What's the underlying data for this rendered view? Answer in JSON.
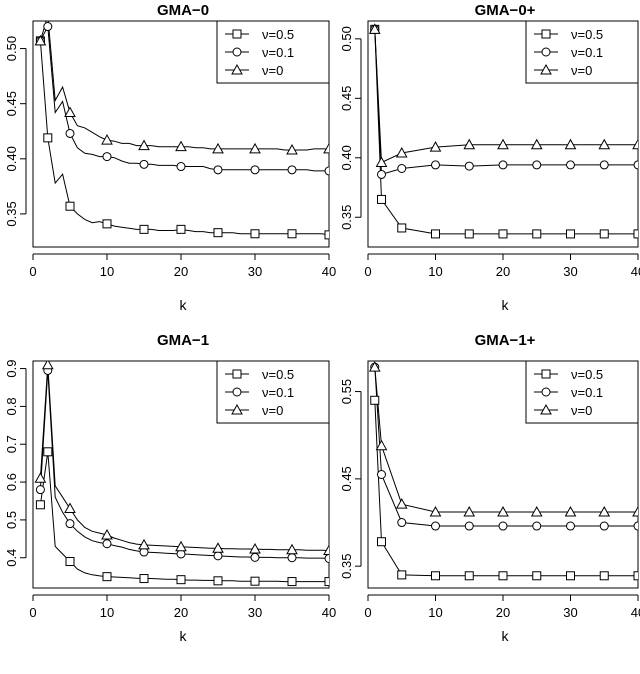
{
  "chart_data": [
    {
      "type": "line",
      "title": "GMA−0",
      "xlabel": "k",
      "ylabel": "",
      "xlim": [
        0,
        40
      ],
      "ylim": [
        0.32,
        0.525
      ],
      "x_ticks": [
        0,
        10,
        20,
        30,
        40
      ],
      "y_ticks": [
        0.35,
        0.4,
        0.45,
        0.5
      ],
      "y_tick_labels": [
        "0.35",
        "0.40",
        "0.45",
        "0.50"
      ],
      "legend_position": "top-right",
      "grid": false,
      "series": [
        {
          "name": "ν=0.5",
          "marker": "square",
          "x": [
            1,
            2,
            3,
            4,
            5,
            6,
            7,
            8,
            9,
            10,
            11,
            12,
            13,
            14,
            15,
            16,
            17,
            18,
            19,
            20,
            21,
            22,
            23,
            24,
            25,
            26,
            27,
            28,
            29,
            30,
            31,
            32,
            33,
            34,
            35,
            36,
            37,
            38,
            39,
            40
          ],
          "y": [
            0.507,
            0.419,
            0.378,
            0.386,
            0.357,
            0.35,
            0.345,
            0.342,
            0.343,
            0.341,
            0.339,
            0.338,
            0.337,
            0.336,
            0.336,
            0.336,
            0.335,
            0.335,
            0.335,
            0.336,
            0.335,
            0.334,
            0.334,
            0.333,
            0.333,
            0.333,
            0.333,
            0.332,
            0.332,
            0.332,
            0.332,
            0.332,
            0.332,
            0.332,
            0.332,
            0.332,
            0.332,
            0.332,
            0.332,
            0.331
          ],
          "marker_x": [
            1,
            2,
            5,
            10,
            15,
            20,
            25,
            30,
            35,
            40
          ]
        },
        {
          "name": "ν=0.1",
          "marker": "circle",
          "x": [
            1,
            2,
            3,
            4,
            5,
            6,
            7,
            8,
            9,
            10,
            11,
            12,
            13,
            14,
            15,
            16,
            17,
            18,
            19,
            20,
            21,
            22,
            23,
            24,
            25,
            26,
            27,
            28,
            29,
            30,
            31,
            32,
            33,
            34,
            35,
            36,
            37,
            38,
            39,
            40
          ],
          "y": [
            0.507,
            0.52,
            0.442,
            0.452,
            0.423,
            0.41,
            0.405,
            0.404,
            0.402,
            0.402,
            0.401,
            0.398,
            0.396,
            0.396,
            0.395,
            0.395,
            0.394,
            0.394,
            0.394,
            0.393,
            0.393,
            0.393,
            0.393,
            0.391,
            0.39,
            0.39,
            0.39,
            0.39,
            0.39,
            0.39,
            0.39,
            0.39,
            0.39,
            0.39,
            0.39,
            0.39,
            0.39,
            0.389,
            0.389,
            0.389
          ],
          "marker_x": [
            1,
            2,
            5,
            10,
            15,
            20,
            25,
            30,
            35,
            40
          ]
        },
        {
          "name": "ν=0",
          "marker": "triangle",
          "x": [
            1,
            2,
            3,
            4,
            5,
            6,
            7,
            8,
            9,
            10,
            11,
            12,
            13,
            14,
            15,
            16,
            17,
            18,
            19,
            20,
            21,
            22,
            23,
            24,
            25,
            26,
            27,
            28,
            29,
            30,
            31,
            32,
            33,
            34,
            35,
            36,
            37,
            38,
            39,
            40
          ],
          "y": [
            0.507,
            0.53,
            0.453,
            0.465,
            0.442,
            0.43,
            0.428,
            0.424,
            0.42,
            0.417,
            0.416,
            0.414,
            0.414,
            0.412,
            0.412,
            0.412,
            0.411,
            0.411,
            0.411,
            0.411,
            0.411,
            0.41,
            0.41,
            0.409,
            0.409,
            0.409,
            0.409,
            0.409,
            0.409,
            0.409,
            0.409,
            0.409,
            0.409,
            0.408,
            0.408,
            0.408,
            0.408,
            0.409,
            0.409,
            0.409
          ],
          "marker_x": [
            1,
            2,
            5,
            10,
            15,
            20,
            25,
            30,
            35,
            40
          ]
        }
      ]
    },
    {
      "type": "line",
      "title": "GMA−0+",
      "xlabel": "k",
      "ylabel": "",
      "xlim": [
        0,
        40
      ],
      "ylim": [
        0.325,
        0.515
      ],
      "x_ticks": [
        0,
        10,
        20,
        30,
        40
      ],
      "y_ticks": [
        0.35,
        0.4,
        0.45,
        0.5
      ],
      "y_tick_labels": [
        "0.35",
        "0.40",
        "0.45",
        "0.50"
      ],
      "legend_position": "top-right",
      "grid": false,
      "series": [
        {
          "name": "ν=0.5",
          "marker": "square",
          "x": [
            1,
            2,
            5,
            10,
            15,
            20,
            25,
            30,
            35,
            40
          ],
          "y": [
            0.508,
            0.365,
            0.341,
            0.336,
            0.336,
            0.336,
            0.336,
            0.336,
            0.336,
            0.336
          ],
          "marker_x": [
            1,
            2,
            5,
            10,
            15,
            20,
            25,
            30,
            35,
            40
          ]
        },
        {
          "name": "ν=0.1",
          "marker": "circle",
          "x": [
            1,
            2,
            5,
            10,
            15,
            20,
            25,
            30,
            35,
            40
          ],
          "y": [
            0.508,
            0.386,
            0.391,
            0.394,
            0.393,
            0.394,
            0.394,
            0.394,
            0.394,
            0.394
          ],
          "marker_x": [
            1,
            2,
            5,
            10,
            15,
            20,
            25,
            30,
            35,
            40
          ]
        },
        {
          "name": "ν=0",
          "marker": "triangle",
          "x": [
            1,
            2,
            5,
            10,
            15,
            20,
            25,
            30,
            35,
            40
          ],
          "y": [
            0.508,
            0.396,
            0.404,
            0.409,
            0.411,
            0.411,
            0.411,
            0.411,
            0.411,
            0.411
          ],
          "marker_x": [
            1,
            2,
            5,
            10,
            15,
            20,
            25,
            30,
            35,
            40
          ]
        }
      ]
    },
    {
      "type": "line",
      "title": "GMA−1",
      "xlabel": "k",
      "ylabel": "",
      "xlim": [
        0,
        40
      ],
      "ylim": [
        0.32,
        0.92
      ],
      "x_ticks": [
        0,
        10,
        20,
        30,
        40
      ],
      "y_ticks": [
        0.4,
        0.5,
        0.6,
        0.7,
        0.8,
        0.9
      ],
      "y_tick_labels": [
        "0.4",
        "0.5",
        "0.6",
        "0.7",
        "0.8",
        "0.9"
      ],
      "legend_position": "top-right",
      "grid": false,
      "series": [
        {
          "name": "ν=0.5",
          "marker": "square",
          "x": [
            1,
            2,
            3,
            4,
            5,
            6,
            7,
            8,
            9,
            10,
            11,
            12,
            13,
            14,
            15,
            16,
            17,
            18,
            19,
            20,
            21,
            22,
            23,
            24,
            25,
            26,
            27,
            28,
            29,
            30,
            31,
            32,
            33,
            34,
            35,
            36,
            37,
            38,
            39,
            40
          ],
          "y": [
            0.54,
            0.68,
            0.43,
            0.41,
            0.39,
            0.37,
            0.36,
            0.355,
            0.352,
            0.35,
            0.349,
            0.348,
            0.347,
            0.346,
            0.345,
            0.345,
            0.344,
            0.343,
            0.343,
            0.342,
            0.341,
            0.341,
            0.34,
            0.34,
            0.339,
            0.339,
            0.339,
            0.338,
            0.338,
            0.338,
            0.338,
            0.338,
            0.338,
            0.337,
            0.337,
            0.337,
            0.337,
            0.337,
            0.337,
            0.337
          ],
          "marker_x": [
            1,
            2,
            5,
            10,
            15,
            20,
            25,
            30,
            35,
            40
          ]
        },
        {
          "name": "ν=0.1",
          "marker": "circle",
          "x": [
            1,
            2,
            3,
            4,
            5,
            6,
            7,
            8,
            9,
            10,
            11,
            12,
            13,
            14,
            15,
            16,
            17,
            18,
            19,
            20,
            21,
            22,
            23,
            24,
            25,
            26,
            27,
            28,
            29,
            30,
            31,
            32,
            33,
            34,
            35,
            36,
            37,
            38,
            39,
            40
          ],
          "y": [
            0.58,
            0.895,
            0.56,
            0.52,
            0.49,
            0.47,
            0.455,
            0.445,
            0.44,
            0.437,
            0.432,
            0.428,
            0.422,
            0.418,
            0.415,
            0.414,
            0.413,
            0.412,
            0.411,
            0.41,
            0.409,
            0.408,
            0.407,
            0.406,
            0.405,
            0.404,
            0.403,
            0.402,
            0.402,
            0.401,
            0.401,
            0.401,
            0.4,
            0.4,
            0.4,
            0.4,
            0.399,
            0.399,
            0.399,
            0.398
          ],
          "marker_x": [
            1,
            2,
            5,
            10,
            15,
            20,
            25,
            30,
            35,
            40
          ]
        },
        {
          "name": "ν=0",
          "marker": "triangle",
          "x": [
            1,
            2,
            3,
            4,
            5,
            6,
            7,
            8,
            9,
            10,
            11,
            12,
            13,
            14,
            15,
            16,
            17,
            18,
            19,
            20,
            21,
            22,
            23,
            24,
            25,
            26,
            27,
            28,
            29,
            30,
            31,
            32,
            33,
            34,
            35,
            36,
            37,
            38,
            39,
            40
          ],
          "y": [
            0.61,
            0.91,
            0.59,
            0.56,
            0.53,
            0.5,
            0.48,
            0.47,
            0.465,
            0.46,
            0.452,
            0.446,
            0.44,
            0.436,
            0.434,
            0.433,
            0.432,
            0.431,
            0.43,
            0.429,
            0.428,
            0.427,
            0.426,
            0.425,
            0.425,
            0.424,
            0.424,
            0.423,
            0.423,
            0.423,
            0.422,
            0.422,
            0.421,
            0.421,
            0.421,
            0.421,
            0.42,
            0.42,
            0.42,
            0.419
          ],
          "marker_x": [
            1,
            2,
            5,
            10,
            15,
            20,
            25,
            30,
            35,
            40
          ]
        }
      ]
    },
    {
      "type": "line",
      "title": "GMA−1+",
      "xlabel": "k",
      "ylabel": "",
      "xlim": [
        0,
        40
      ],
      "ylim": [
        0.325,
        0.585
      ],
      "x_ticks": [
        0,
        10,
        20,
        30,
        40
      ],
      "y_ticks": [
        0.35,
        0.45,
        0.55
      ],
      "y_tick_labels": [
        "0.35",
        "0.45",
        "0.55"
      ],
      "legend_position": "top-right",
      "grid": false,
      "series": [
        {
          "name": "ν=0.5",
          "marker": "square",
          "x": [
            1,
            2,
            5,
            10,
            15,
            20,
            25,
            30,
            35,
            40
          ],
          "y": [
            0.54,
            0.378,
            0.34,
            0.339,
            0.339,
            0.339,
            0.339,
            0.339,
            0.339,
            0.339
          ],
          "marker_x": [
            1,
            2,
            5,
            10,
            15,
            20,
            25,
            30,
            35,
            40
          ]
        },
        {
          "name": "ν=0.1",
          "marker": "circle",
          "x": [
            1,
            2,
            5,
            10,
            15,
            20,
            25,
            30,
            35,
            40
          ],
          "y": [
            0.578,
            0.455,
            0.4,
            0.396,
            0.396,
            0.396,
            0.396,
            0.396,
            0.396,
            0.396
          ],
          "marker_x": [
            1,
            2,
            5,
            10,
            15,
            20,
            25,
            30,
            35,
            40
          ]
        },
        {
          "name": "ν=0",
          "marker": "triangle",
          "x": [
            1,
            2,
            5,
            10,
            15,
            20,
            25,
            30,
            35,
            40
          ],
          "y": [
            0.578,
            0.488,
            0.421,
            0.412,
            0.412,
            0.412,
            0.412,
            0.412,
            0.412,
            0.412
          ],
          "marker_x": [
            1,
            2,
            5,
            10,
            15,
            20,
            25,
            30,
            35,
            40
          ]
        }
      ]
    }
  ]
}
